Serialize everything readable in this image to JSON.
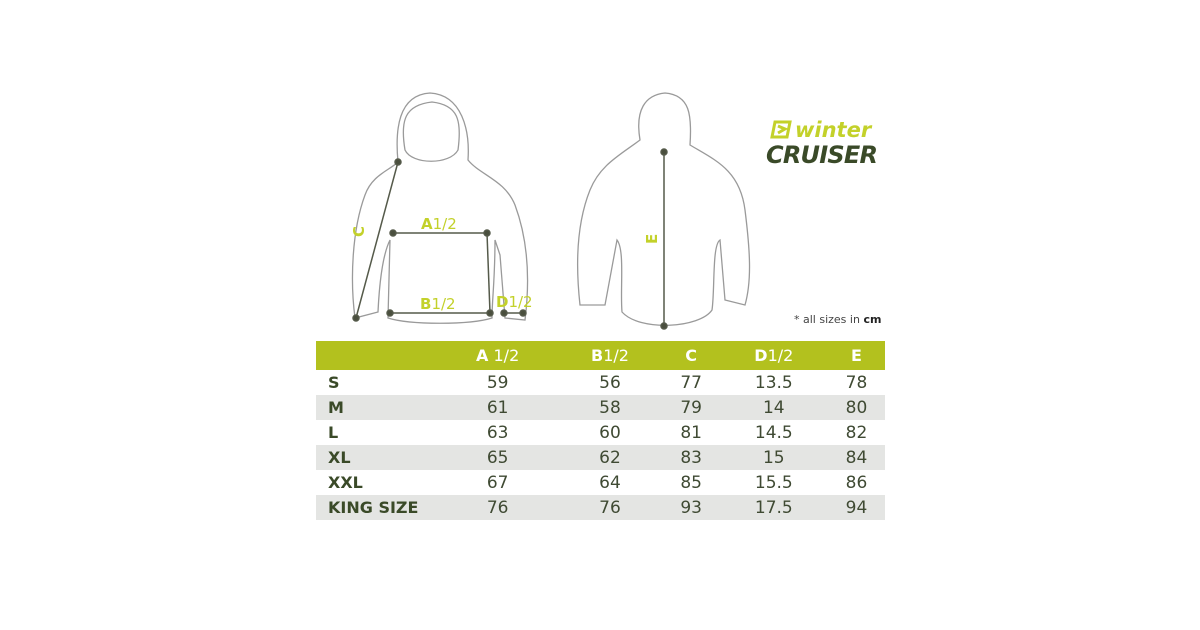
{
  "logo": {
    "line1": "winter",
    "line2": "CRUISER",
    "accent": "#c3d12a",
    "dark": "#3a4a28"
  },
  "diagram_labels": {
    "a": {
      "letter": "A",
      "suffix": "1/2"
    },
    "b": {
      "letter": "B",
      "suffix": "1/2"
    },
    "c": "C",
    "d": {
      "letter": "D",
      "suffix": "1/2"
    },
    "e": "E"
  },
  "note": {
    "prefix": "* all sizes in",
    "unit": "cm"
  },
  "table": {
    "header_color": "#b3c11e",
    "columns": [
      {
        "letter": "A",
        "suffix": " 1/2"
      },
      {
        "letter": "B",
        "suffix": "1/2"
      },
      {
        "letter": "C",
        "suffix": ""
      },
      {
        "letter": "D",
        "suffix": "1/2"
      },
      {
        "letter": "E",
        "suffix": ""
      }
    ],
    "rows": [
      {
        "size": "S",
        "values": [
          "59",
          "56",
          "77",
          "13.5",
          "78"
        ]
      },
      {
        "size": "M",
        "values": [
          "61",
          "58",
          "79",
          "14",
          "80"
        ]
      },
      {
        "size": "L",
        "values": [
          "63",
          "60",
          "81",
          "14.5",
          "82"
        ]
      },
      {
        "size": "XL",
        "values": [
          "65",
          "62",
          "83",
          "15",
          "84"
        ]
      },
      {
        "size": "XXL",
        "values": [
          "67",
          "64",
          "85",
          "15.5",
          "86"
        ]
      },
      {
        "size": "KING SIZE",
        "values": [
          "76",
          "76",
          "93",
          "17.5",
          "94"
        ]
      }
    ]
  }
}
